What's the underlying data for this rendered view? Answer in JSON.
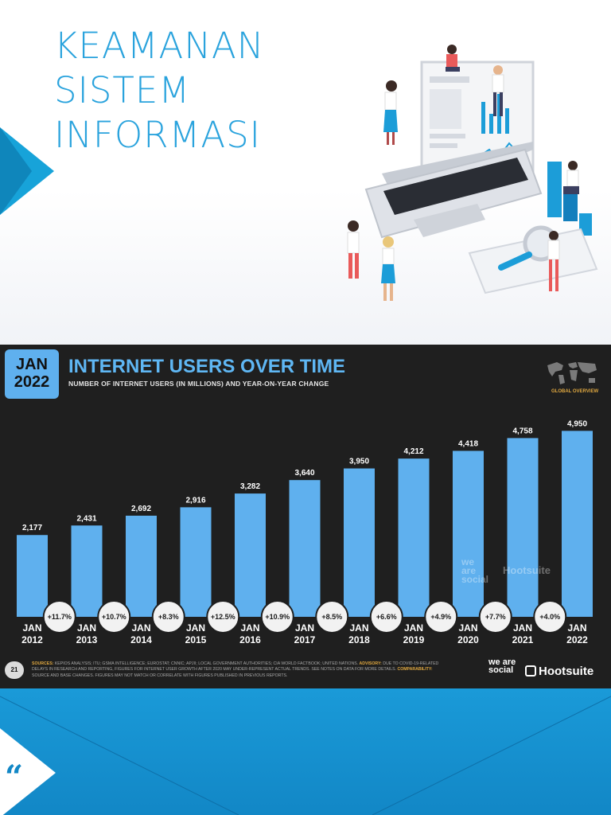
{
  "slide_top": {
    "title_lines": [
      "KEAMANAN",
      "SISTEM",
      "INFORMASI"
    ]
  },
  "chart_header": {
    "badge_month": "JAN",
    "badge_year": "2022",
    "title": "INTERNET USERS OVER TIME",
    "subtitle": "NUMBER OF INTERNET USERS (IN MILLIONS) AND YEAR-ON-YEAR CHANGE",
    "region_label": "GLOBAL OVERVIEW"
  },
  "chart_data": {
    "type": "bar",
    "title": "INTERNET USERS OVER TIME",
    "subtitle": "NUMBER OF INTERNET USERS (IN MILLIONS) AND YEAR-ON-YEAR CHANGE",
    "categories": [
      "JAN 2012",
      "JAN 2013",
      "JAN 2014",
      "JAN 2015",
      "JAN 2016",
      "JAN 2017",
      "JAN 2018",
      "JAN 2019",
      "JAN 2020",
      "JAN 2021",
      "JAN 2022"
    ],
    "category_lines": [
      [
        "JAN",
        "2012"
      ],
      [
        "JAN",
        "2013"
      ],
      [
        "JAN",
        "2014"
      ],
      [
        "JAN",
        "2015"
      ],
      [
        "JAN",
        "2016"
      ],
      [
        "JAN",
        "2017"
      ],
      [
        "JAN",
        "2018"
      ],
      [
        "JAN",
        "2019"
      ],
      [
        "JAN",
        "2020"
      ],
      [
        "JAN",
        "2021"
      ],
      [
        "JAN",
        "2022"
      ]
    ],
    "values": [
      2177,
      2431,
      2692,
      2916,
      3282,
      3640,
      3950,
      4212,
      4418,
      4758,
      4950
    ],
    "value_labels": [
      "2,177",
      "2,431",
      "2,692",
      "2,916",
      "3,282",
      "3,640",
      "3,950",
      "4,212",
      "4,418",
      "4,758",
      "4,950"
    ],
    "yoy_change": [
      "+11.7%",
      "+10.7%",
      "+8.3%",
      "+12.5%",
      "+10.9%",
      "+8.5%",
      "+6.6%",
      "+4.9%",
      "+7.7%",
      "+4.0%"
    ],
    "ylim": [
      0,
      5000
    ],
    "grid": false,
    "bar_color": "#5fb0ee",
    "background": "#1f1f1f"
  },
  "footer": {
    "page_number": "21",
    "sources_label": "SOURCES:",
    "sources_text": "KEPIOS ANALYSIS; ITU; GSMA INTELLIGENCE; EUROSTAT; CNNIC; APJII; LOCAL GOVERNMENT AUTHORITIES; CIA WORLD FACTBOOK; UNITED NATIONS. ",
    "advisory_label": "ADVISORY:",
    "advisory_text": "DUE TO COVID-19-RELATED DELAYS IN RESEARCH AND REPORTING, FIGURES FOR INTERNET USER GROWTH AFTER 2020 MAY UNDER-REPRESENT ACTUAL TRENDS. SEE NOTES ON DATA FOR MORE DETAILS. ",
    "comparability_label": "COMPARABILITY:",
    "comparability_text": "SOURCE AND BASE CHANGES. FIGURES MAY NOT MATCH OR CORRELATE WITH FIGURES PUBLISHED IN PREVIOUS REPORTS.",
    "brand_social": "we are social",
    "brand_hootsuite": "Hootsuite"
  },
  "watermark": {
    "social": "we are social",
    "hootsuite": "Hootsuite"
  },
  "slide_bottom": {
    "quote_glyph": "“"
  },
  "colors": {
    "accent_blue": "#2aa3dd",
    "arrow_blue": "#17a3d9",
    "bottom_blue": "#1287c6",
    "chart_bg": "#1f1f1f",
    "bar": "#5fb0ee",
    "highlight_orange": "#e0a840"
  }
}
